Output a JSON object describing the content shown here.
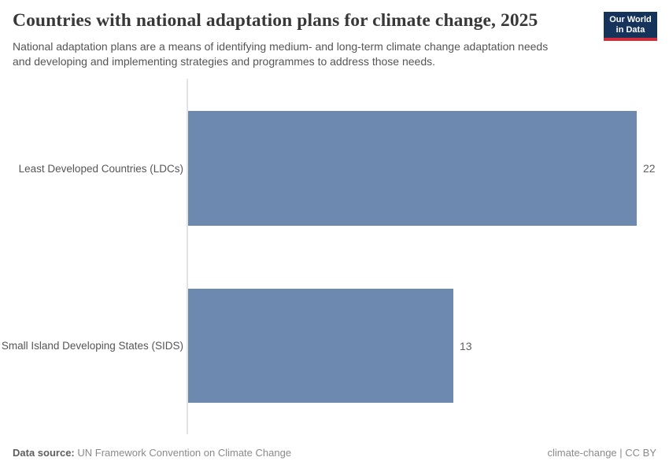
{
  "header": {
    "title": "Countries with national adaptation plans for climate change, 2025",
    "subtitle_lines": [
      "National adaptation plans are a means of identifying medium- and long-term climate change adaptation needs",
      "and developing and implementing strategies and programmes to address those needs."
    ],
    "logo": {
      "line1": "Our World",
      "line2": "in Data"
    }
  },
  "chart_data": {
    "type": "bar",
    "orientation": "horizontal",
    "title": "Countries with national adaptation plans for climate change, 2025",
    "categories": [
      "Least Developed Countries (LDCs)",
      "Small Island Developing States (SIDS)"
    ],
    "values": [
      22,
      13
    ],
    "value_labels": [
      "22",
      "13"
    ],
    "xlim": [
      0,
      22
    ],
    "xlabel": "",
    "ylabel": "",
    "grid": false,
    "legend": false,
    "bar_color": "#6d89b0"
  },
  "footer": {
    "source_label": "Data source:",
    "source_text": "UN Framework Convention on Climate Change",
    "license_text": "climate-change | CC BY"
  },
  "colors": {
    "bar": "#6d89b0",
    "axis_line": "#e3e3e3",
    "logo_background": "#15335b",
    "logo_stripe": "#cf2d3d",
    "title_text": "#383838",
    "subtitle_text": "#555555"
  }
}
